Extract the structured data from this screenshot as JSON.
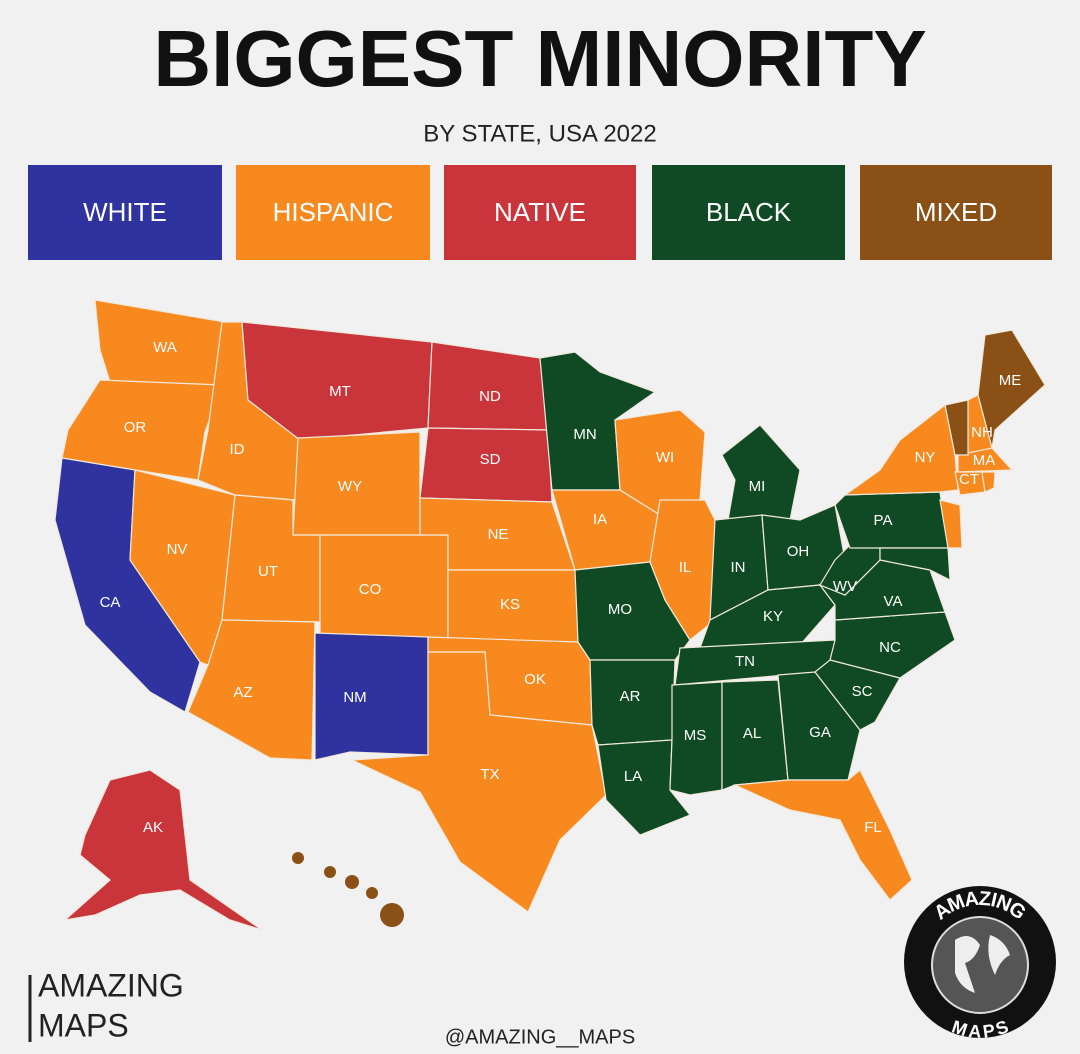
{
  "header": {
    "title": "BIGGEST MINORITY",
    "subtitle": "BY STATE, USA 2022"
  },
  "legend": [
    {
      "label": "WHITE",
      "color": "#2e33a0"
    },
    {
      "label": "HISPANIC",
      "color": "#f7891f"
    },
    {
      "label": "NATIVE",
      "color": "#c9353b"
    },
    {
      "label": "BLACK",
      "color": "#0f4a24"
    },
    {
      "label": "MIXED",
      "color": "#8b5015"
    }
  ],
  "states": [
    {
      "label": "WA",
      "group": "HISPANIC"
    },
    {
      "label": "OR",
      "group": "HISPANIC"
    },
    {
      "label": "CA",
      "group": "WHITE"
    },
    {
      "label": "NV",
      "group": "HISPANIC"
    },
    {
      "label": "ID",
      "group": "HISPANIC"
    },
    {
      "label": "MT",
      "group": "NATIVE"
    },
    {
      "label": "WY",
      "group": "HISPANIC"
    },
    {
      "label": "UT",
      "group": "HISPANIC"
    },
    {
      "label": "CO",
      "group": "HISPANIC"
    },
    {
      "label": "AZ",
      "group": "HISPANIC"
    },
    {
      "label": "NM",
      "group": "WHITE"
    },
    {
      "label": "ND",
      "group": "NATIVE"
    },
    {
      "label": "SD",
      "group": "NATIVE"
    },
    {
      "label": "NE",
      "group": "HISPANIC"
    },
    {
      "label": "KS",
      "group": "HISPANIC"
    },
    {
      "label": "OK",
      "group": "HISPANIC"
    },
    {
      "label": "TX",
      "group": "HISPANIC"
    },
    {
      "label": "MN",
      "group": "BLACK"
    },
    {
      "label": "IA",
      "group": "HISPANIC"
    },
    {
      "label": "MO",
      "group": "BLACK"
    },
    {
      "label": "AR",
      "group": "BLACK"
    },
    {
      "label": "LA",
      "group": "BLACK"
    },
    {
      "label": "WI",
      "group": "HISPANIC"
    },
    {
      "label": "IL",
      "group": "HISPANIC"
    },
    {
      "label": "MI",
      "group": "BLACK"
    },
    {
      "label": "IN",
      "group": "BLACK"
    },
    {
      "label": "OH",
      "group": "BLACK"
    },
    {
      "label": "KY",
      "group": "BLACK"
    },
    {
      "label": "TN",
      "group": "BLACK"
    },
    {
      "label": "MS",
      "group": "BLACK"
    },
    {
      "label": "AL",
      "group": "BLACK"
    },
    {
      "label": "GA",
      "group": "BLACK"
    },
    {
      "label": "FL",
      "group": "HISPANIC"
    },
    {
      "label": "SC",
      "group": "BLACK"
    },
    {
      "label": "NC",
      "group": "BLACK"
    },
    {
      "label": "VA",
      "group": "BLACK"
    },
    {
      "label": "WV",
      "group": "BLACK"
    },
    {
      "label": "PA",
      "group": "BLACK"
    },
    {
      "label": "NY",
      "group": "HISPANIC"
    },
    {
      "label": "NH",
      "group": "HISPANIC"
    },
    {
      "label": "ME",
      "group": "MIXED"
    },
    {
      "label": "MA",
      "group": "HISPANIC"
    },
    {
      "label": "CT",
      "group": "HISPANIC"
    },
    {
      "label": "AK",
      "group": "NATIVE"
    }
  ],
  "credits": {
    "brand_line1": "AMAZING",
    "brand_line2": "MAPS",
    "handle": "@AMAZING__MAPS",
    "logo_top": "AMAZING",
    "logo_bottom": "MAPS"
  }
}
